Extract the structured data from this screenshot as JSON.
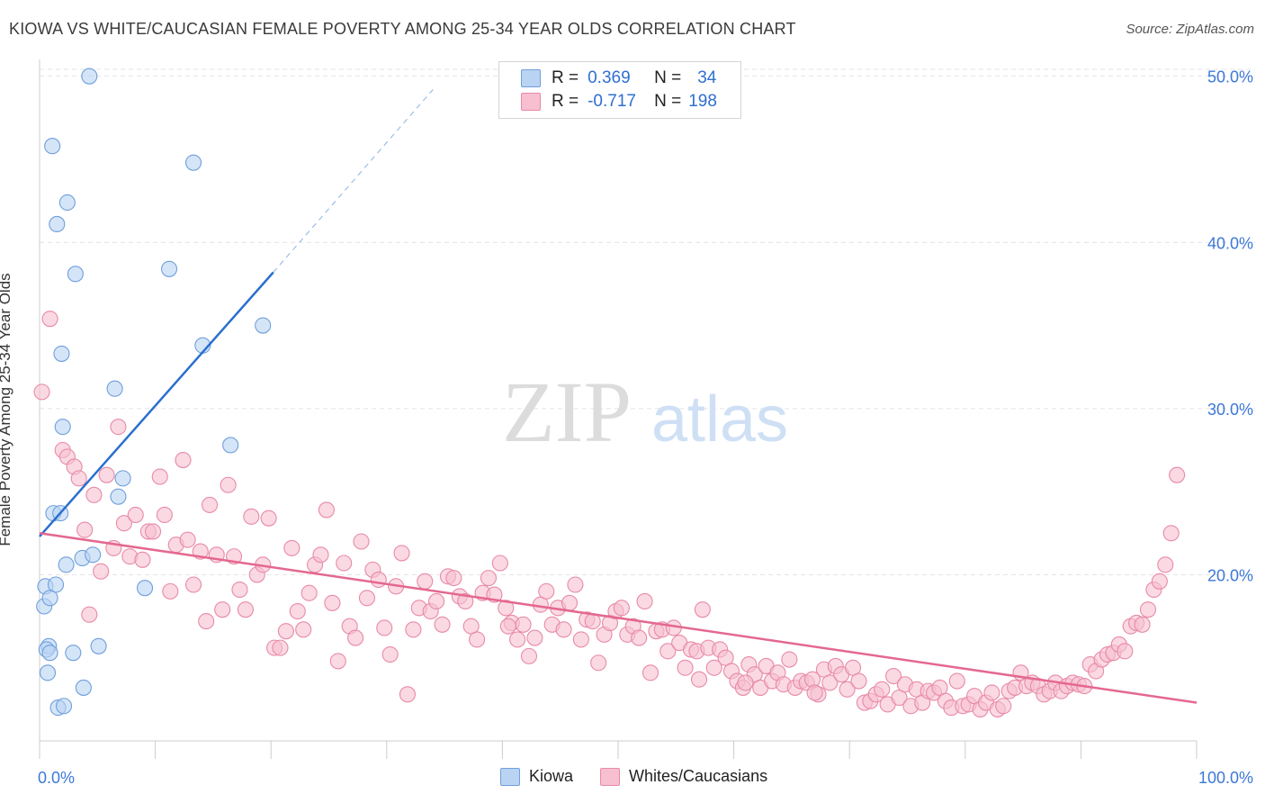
{
  "title": "KIOWA VS WHITE/CAUCASIAN FEMALE POVERTY AMONG 25-34 YEAR OLDS CORRELATION CHART",
  "source": "Source: ZipAtlas.com",
  "watermark": {
    "zip": "ZIP",
    "atlas": "atlas"
  },
  "colors": {
    "kiowa_fill": "#b9d3f3",
    "kiowa_stroke": "#6f9fdc",
    "kiowa_line": "#2a6fcf",
    "white_fill": "#f7bfd0",
    "white_stroke": "#e88aa8",
    "white_line": "#e4688f",
    "axis_label": "#3c78d8",
    "grid": "#e3e3e3"
  },
  "legend": {
    "rows": [
      {
        "r_label": "R =",
        "r_value": "0.369",
        "n_label": "N =",
        "n_value": "34"
      },
      {
        "r_label": "R =",
        "r_value": "-0.717",
        "n_label": "N =",
        "n_value": "198"
      }
    ]
  },
  "bottom_legend": {
    "kiowa": "Kiowa",
    "white": "Whites/Caucasians"
  },
  "chart_data": {
    "type": "scatter",
    "title": "KIOWA VS WHITE/CAUCASIAN FEMALE POVERTY AMONG 25-34 YEAR OLDS CORRELATION CHART",
    "xlabel": "",
    "ylabel": "Female Poverty Among 25-34 Year Olds",
    "xlim": [
      0,
      100
    ],
    "ylim": [
      10,
      51.5
    ],
    "x_tick_labels": [
      "0.0%",
      "100.0%"
    ],
    "y_ticks": [
      20,
      30,
      40,
      50
    ],
    "y_tick_labels": [
      "20.0%",
      "30.0%",
      "40.0%",
      "50.0%"
    ],
    "grid": true,
    "series": [
      {
        "name": "Kiowa",
        "r": 0.369,
        "n": 34,
        "trend": {
          "x": [
            0,
            20.2
          ],
          "y": [
            22.3,
            38.2
          ],
          "dashed_to": [
            34.0,
            49.2
          ]
        },
        "points": [
          [
            4.3,
            50.0
          ],
          [
            1.1,
            45.8
          ],
          [
            13.3,
            44.8
          ],
          [
            2.4,
            42.4
          ],
          [
            1.5,
            41.1
          ],
          [
            3.1,
            38.1
          ],
          [
            11.2,
            38.4
          ],
          [
            19.3,
            35.0
          ],
          [
            14.1,
            33.8
          ],
          [
            1.9,
            33.3
          ],
          [
            6.5,
            31.2
          ],
          [
            2.0,
            28.9
          ],
          [
            16.5,
            27.8
          ],
          [
            7.2,
            25.8
          ],
          [
            6.8,
            24.7
          ],
          [
            1.2,
            23.7
          ],
          [
            1.8,
            23.7
          ],
          [
            2.3,
            20.6
          ],
          [
            3.7,
            21.0
          ],
          [
            4.6,
            21.2
          ],
          [
            0.5,
            19.3
          ],
          [
            1.4,
            19.4
          ],
          [
            9.1,
            19.2
          ],
          [
            0.4,
            18.1
          ],
          [
            0.9,
            18.6
          ],
          [
            0.8,
            15.7
          ],
          [
            0.6,
            15.5
          ],
          [
            0.9,
            15.3
          ],
          [
            2.9,
            15.3
          ],
          [
            5.1,
            15.7
          ],
          [
            0.7,
            14.1
          ],
          [
            3.8,
            13.2
          ],
          [
            1.6,
            12.0
          ],
          [
            2.1,
            12.1
          ]
        ]
      },
      {
        "name": "Whites/Caucasians",
        "r": -0.717,
        "n": 198,
        "trend": {
          "x": [
            0,
            100
          ],
          "y": [
            22.5,
            12.3
          ]
        },
        "points": [
          [
            0.2,
            31.0
          ],
          [
            0.9,
            35.4
          ],
          [
            2.0,
            27.5
          ],
          [
            2.4,
            27.1
          ],
          [
            3.0,
            26.5
          ],
          [
            3.4,
            25.8
          ],
          [
            3.9,
            22.7
          ],
          [
            4.3,
            17.6
          ],
          [
            4.7,
            24.8
          ],
          [
            5.3,
            20.2
          ],
          [
            5.8,
            26.0
          ],
          [
            6.4,
            21.6
          ],
          [
            6.8,
            28.9
          ],
          [
            7.3,
            23.1
          ],
          [
            7.8,
            21.1
          ],
          [
            8.3,
            23.6
          ],
          [
            8.9,
            20.9
          ],
          [
            9.4,
            22.6
          ],
          [
            9.8,
            22.6
          ],
          [
            10.4,
            25.9
          ],
          [
            10.8,
            23.6
          ],
          [
            11.3,
            19.0
          ],
          [
            11.8,
            21.8
          ],
          [
            12.4,
            26.9
          ],
          [
            12.8,
            22.1
          ],
          [
            13.3,
            19.4
          ],
          [
            13.9,
            21.4
          ],
          [
            14.4,
            17.2
          ],
          [
            14.7,
            24.2
          ],
          [
            15.3,
            21.2
          ],
          [
            15.8,
            17.9
          ],
          [
            16.3,
            25.4
          ],
          [
            16.8,
            21.1
          ],
          [
            17.3,
            19.1
          ],
          [
            17.8,
            17.9
          ],
          [
            18.3,
            23.5
          ],
          [
            18.8,
            20.0
          ],
          [
            19.3,
            20.6
          ],
          [
            19.8,
            23.4
          ],
          [
            20.3,
            15.6
          ],
          [
            20.8,
            15.6
          ],
          [
            21.3,
            16.6
          ],
          [
            21.8,
            21.6
          ],
          [
            22.3,
            17.8
          ],
          [
            22.8,
            16.7
          ],
          [
            23.3,
            18.9
          ],
          [
            23.8,
            20.6
          ],
          [
            24.3,
            21.2
          ],
          [
            24.8,
            23.9
          ],
          [
            25.3,
            18.3
          ],
          [
            25.8,
            14.8
          ],
          [
            26.3,
            20.7
          ],
          [
            26.8,
            16.9
          ],
          [
            27.3,
            16.2
          ],
          [
            27.8,
            22.0
          ],
          [
            28.3,
            18.6
          ],
          [
            28.8,
            20.3
          ],
          [
            29.3,
            19.7
          ],
          [
            29.8,
            16.8
          ],
          [
            30.3,
            15.2
          ],
          [
            30.8,
            19.3
          ],
          [
            31.3,
            21.3
          ],
          [
            31.8,
            12.8
          ],
          [
            32.3,
            16.7
          ],
          [
            32.8,
            18.0
          ],
          [
            33.3,
            19.6
          ],
          [
            33.8,
            17.8
          ],
          [
            34.3,
            18.4
          ],
          [
            34.8,
            17.0
          ],
          [
            35.3,
            19.9
          ],
          [
            35.8,
            19.8
          ],
          [
            36.3,
            18.7
          ],
          [
            36.8,
            18.4
          ],
          [
            37.3,
            16.9
          ],
          [
            37.8,
            16.1
          ],
          [
            38.3,
            18.9
          ],
          [
            38.8,
            19.8
          ],
          [
            39.3,
            18.8
          ],
          [
            39.8,
            20.7
          ],
          [
            40.3,
            18.0
          ],
          [
            40.8,
            17.1
          ],
          [
            41.3,
            16.1
          ],
          [
            41.8,
            17.0
          ],
          [
            42.3,
            15.1
          ],
          [
            42.8,
            16.2
          ],
          [
            43.3,
            18.2
          ],
          [
            43.8,
            19.0
          ],
          [
            44.3,
            17.0
          ],
          [
            44.8,
            18.0
          ],
          [
            45.3,
            16.7
          ],
          [
            45.8,
            18.3
          ],
          [
            46.3,
            19.4
          ],
          [
            46.8,
            16.1
          ],
          [
            47.3,
            17.3
          ],
          [
            47.8,
            17.2
          ],
          [
            48.3,
            14.7
          ],
          [
            48.8,
            16.4
          ],
          [
            49.3,
            17.1
          ],
          [
            49.8,
            17.8
          ],
          [
            50.3,
            18.0
          ],
          [
            50.8,
            16.4
          ],
          [
            51.3,
            16.9
          ],
          [
            51.8,
            16.2
          ],
          [
            52.3,
            18.4
          ],
          [
            52.8,
            14.1
          ],
          [
            53.3,
            16.6
          ],
          [
            53.8,
            16.7
          ],
          [
            54.3,
            15.4
          ],
          [
            54.8,
            16.8
          ],
          [
            55.3,
            15.9
          ],
          [
            55.8,
            14.4
          ],
          [
            56.3,
            15.5
          ],
          [
            56.8,
            15.4
          ],
          [
            57.3,
            17.9
          ],
          [
            57.8,
            15.6
          ],
          [
            58.3,
            14.4
          ],
          [
            58.8,
            15.5
          ],
          [
            59.3,
            15.0
          ],
          [
            59.8,
            14.2
          ],
          [
            60.3,
            13.6
          ],
          [
            60.8,
            13.2
          ],
          [
            61.3,
            14.6
          ],
          [
            61.8,
            14.0
          ],
          [
            62.3,
            13.2
          ],
          [
            62.8,
            14.5
          ],
          [
            63.3,
            13.6
          ],
          [
            63.8,
            14.1
          ],
          [
            64.3,
            13.4
          ],
          [
            64.8,
            14.9
          ],
          [
            65.3,
            13.2
          ],
          [
            65.8,
            13.6
          ],
          [
            66.3,
            13.5
          ],
          [
            66.8,
            13.7
          ],
          [
            67.3,
            12.8
          ],
          [
            67.8,
            14.3
          ],
          [
            68.3,
            13.5
          ],
          [
            68.8,
            14.5
          ],
          [
            69.3,
            14.0
          ],
          [
            69.8,
            13.1
          ],
          [
            70.3,
            14.4
          ],
          [
            70.8,
            13.6
          ],
          [
            71.3,
            12.3
          ],
          [
            71.8,
            12.4
          ],
          [
            72.3,
            12.8
          ],
          [
            72.8,
            13.1
          ],
          [
            73.3,
            12.2
          ],
          [
            73.8,
            13.9
          ],
          [
            74.3,
            12.6
          ],
          [
            74.8,
            13.4
          ],
          [
            75.3,
            12.1
          ],
          [
            75.8,
            13.1
          ],
          [
            76.3,
            12.3
          ],
          [
            76.8,
            13.0
          ],
          [
            77.3,
            12.9
          ],
          [
            77.8,
            13.2
          ],
          [
            78.3,
            12.4
          ],
          [
            78.8,
            12.0
          ],
          [
            79.3,
            13.6
          ],
          [
            79.8,
            12.1
          ],
          [
            80.3,
            12.2
          ],
          [
            80.8,
            12.7
          ],
          [
            81.3,
            11.9
          ],
          [
            81.8,
            12.3
          ],
          [
            82.3,
            12.9
          ],
          [
            82.8,
            11.9
          ],
          [
            83.3,
            12.1
          ],
          [
            83.8,
            13.0
          ],
          [
            84.3,
            13.2
          ],
          [
            84.8,
            14.1
          ],
          [
            85.3,
            13.3
          ],
          [
            85.8,
            13.5
          ],
          [
            86.3,
            13.3
          ],
          [
            86.8,
            12.8
          ],
          [
            87.3,
            13.0
          ],
          [
            87.8,
            13.5
          ],
          [
            88.3,
            13.0
          ],
          [
            88.8,
            13.3
          ],
          [
            89.3,
            13.5
          ],
          [
            89.8,
            13.4
          ],
          [
            90.3,
            13.3
          ],
          [
            90.8,
            14.6
          ],
          [
            91.3,
            14.2
          ],
          [
            91.8,
            14.9
          ],
          [
            92.3,
            15.2
          ],
          [
            92.8,
            15.3
          ],
          [
            93.3,
            15.8
          ],
          [
            93.8,
            15.4
          ],
          [
            94.3,
            16.9
          ],
          [
            94.8,
            17.1
          ],
          [
            95.3,
            17.0
          ],
          [
            95.8,
            17.9
          ],
          [
            96.3,
            19.1
          ],
          [
            96.8,
            19.6
          ],
          [
            97.3,
            20.6
          ],
          [
            97.8,
            22.5
          ],
          [
            98.3,
            26.0
          ],
          [
            61.0,
            13.5
          ],
          [
            40.5,
            16.9
          ],
          [
            57.0,
            13.7
          ],
          [
            67.0,
            12.9
          ]
        ]
      }
    ]
  }
}
